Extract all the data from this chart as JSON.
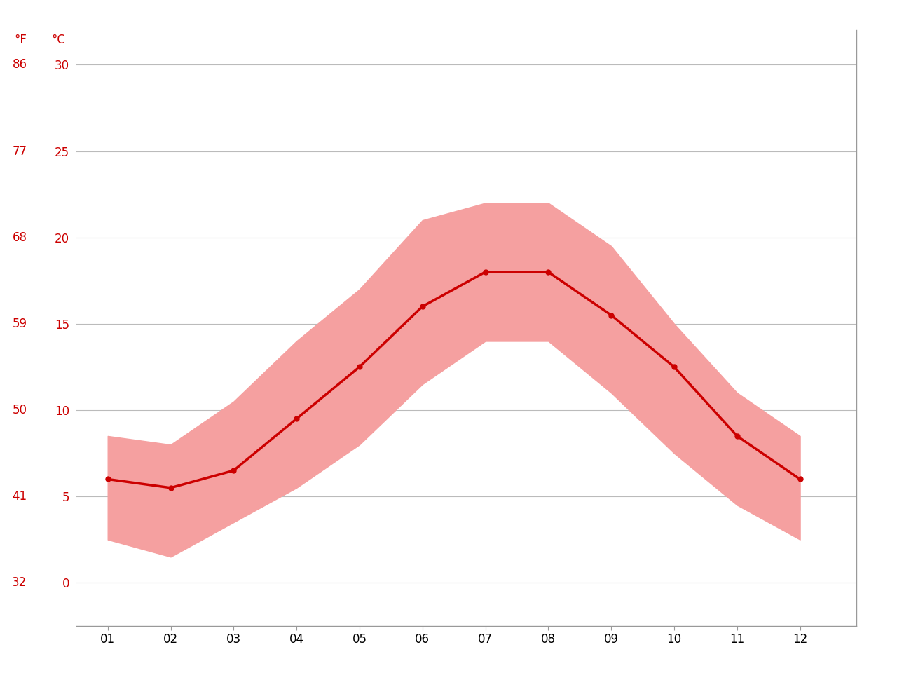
{
  "months": [
    1,
    2,
    3,
    4,
    5,
    6,
    7,
    8,
    9,
    10,
    11,
    12
  ],
  "month_labels": [
    "01",
    "02",
    "03",
    "04",
    "05",
    "06",
    "07",
    "08",
    "09",
    "10",
    "11",
    "12"
  ],
  "mean_temp_c": [
    6.0,
    5.5,
    6.5,
    9.5,
    12.5,
    16.0,
    18.0,
    18.0,
    15.5,
    12.5,
    8.5,
    6.0
  ],
  "temp_max_c": [
    8.5,
    8.0,
    10.5,
    14.0,
    17.0,
    21.0,
    22.0,
    22.0,
    19.5,
    15.0,
    11.0,
    8.5
  ],
  "temp_min_c": [
    2.5,
    1.5,
    3.5,
    5.5,
    8.0,
    11.5,
    14.0,
    14.0,
    11.0,
    7.5,
    4.5,
    2.5
  ],
  "yticks_c": [
    0,
    5,
    10,
    15,
    20,
    25,
    30
  ],
  "yticks_f": [
    32,
    41,
    50,
    59,
    68,
    77,
    86
  ],
  "ylim_c": [
    -2.5,
    32
  ],
  "xlim": [
    0.5,
    12.9
  ],
  "line_color": "#cc0000",
  "band_color": "#f5a0a0",
  "grid_color": "#bbbbbb",
  "tick_color": "#cc0000",
  "background": "#ffffff",
  "marker": "o",
  "marker_size": 5,
  "line_width": 2.5,
  "spine_color": "#999999",
  "label_fontsize": 12,
  "tick_fontsize": 12
}
